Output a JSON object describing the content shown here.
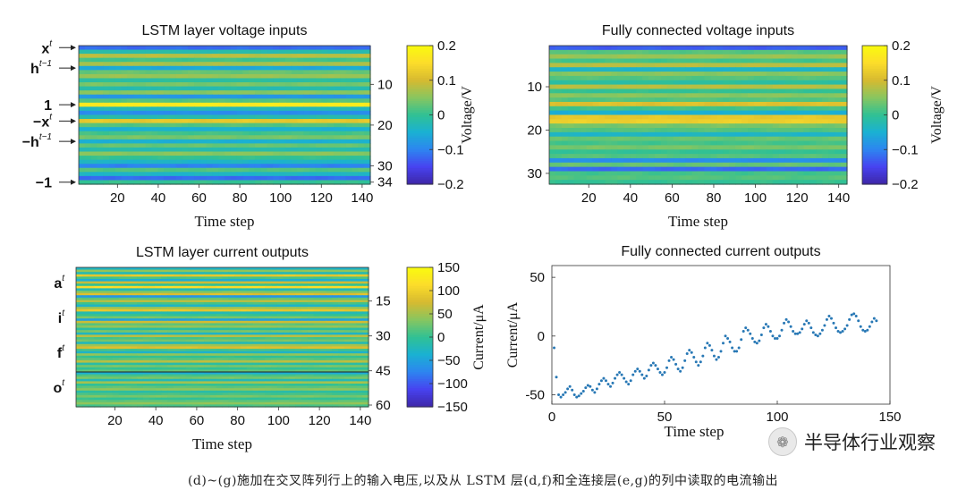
{
  "chart_data": [
    {
      "id": "lstm-voltage",
      "type": "heatmap",
      "title": "LSTM layer voltage inputs",
      "xlabel": "Time step",
      "x_ticks": [
        20,
        40,
        60,
        80,
        100,
        120,
        140
      ],
      "x_range": [
        1,
        144
      ],
      "row_range": [
        1,
        34
      ],
      "y_ticks_right": [
        10,
        20,
        30,
        34
      ],
      "row_labels": [
        {
          "text": "x",
          "sup": "t",
          "row": 1
        },
        {
          "text": "h",
          "sup": "t−1",
          "row": 6
        },
        {
          "text": "1",
          "sup": "",
          "row": 15
        },
        {
          "text": "−x",
          "sup": "t",
          "row": 19
        },
        {
          "text": "−h",
          "sup": "t−1",
          "row": 24
        },
        {
          "text": "−1",
          "sup": "",
          "row": 34
        }
      ],
      "colorbar": {
        "label": "Voltage/V",
        "range": [
          -0.2,
          0.2
        ],
        "ticks": [
          "0.2",
          "0.1",
          "0",
          "−0.1",
          "−0.2"
        ],
        "tick_values": [
          0.2,
          0.1,
          0,
          -0.1,
          -0.2
        ]
      },
      "row_values_V": [
        -0.12,
        -0.02,
        0.08,
        0.01,
        0.07,
        -0.06,
        0.03,
        0.06,
        -0.01,
        0.04,
        -0.02,
        0.05,
        -0.08,
        0.02,
        0.17,
        -0.03,
        -0.09,
        -0.02,
        0.12,
        0.02,
        -0.05,
        0.01,
        0.04,
        -0.05,
        0.03,
        -0.02,
        0.05,
        0.0,
        -0.04,
        -0.1,
        0.02,
        -0.04,
        -0.12,
        0.0
      ]
    },
    {
      "id": "fc-voltage",
      "type": "heatmap",
      "title": "Fully connected voltage inputs",
      "xlabel": "Time step",
      "x_ticks": [
        20,
        40,
        60,
        80,
        100,
        120,
        140
      ],
      "x_range": [
        1,
        144
      ],
      "row_range": [
        1,
        32
      ],
      "y_ticks_left": [
        10,
        20,
        30
      ],
      "colorbar": {
        "label": "Voltage/V",
        "range": [
          -0.2,
          0.2
        ],
        "ticks": [
          "0.2",
          "0.1",
          "0",
          "−0.1",
          "−0.2"
        ],
        "tick_values": [
          0.2,
          0.1,
          0,
          -0.1,
          -0.2
        ]
      },
      "row_values_V": [
        -0.13,
        0.02,
        0.06,
        0.01,
        0.08,
        -0.04,
        0.05,
        0.02,
        -0.01,
        0.08,
        0.0,
        0.05,
        0.02,
        0.11,
        0.01,
        -0.05,
        0.12,
        0.13,
        0.04,
        0.02,
        -0.04,
        0.03,
        0.01,
        0.04,
        0.0,
        0.02,
        -0.09,
        0.03,
        -0.12,
        0.01,
        0.02,
        0.0
      ]
    },
    {
      "id": "lstm-current",
      "type": "heatmap",
      "title": "LSTM layer current outputs",
      "xlabel": "Time step",
      "x_ticks": [
        20,
        40,
        60,
        80,
        100,
        120,
        140
      ],
      "x_range": [
        1,
        144
      ],
      "row_range": [
        1,
        60
      ],
      "y_ticks_right": [
        15,
        30,
        45,
        60
      ],
      "row_labels": [
        {
          "text": "a",
          "sup": "t",
          "row": 7
        },
        {
          "text": "i",
          "sup": "t",
          "row": 22
        },
        {
          "text": "f",
          "sup": "t",
          "row": 37
        },
        {
          "text": "o",
          "sup": "t",
          "row": 52
        }
      ],
      "separator_rows": [
        45
      ],
      "colorbar": {
        "label": "Current/μA",
        "range": [
          -150,
          150
        ],
        "ticks": [
          "150",
          "100",
          "50",
          "0",
          "−50",
          "−100",
          "−150"
        ],
        "tick_values": [
          150,
          100,
          50,
          0,
          -50,
          -100,
          -150
        ]
      },
      "row_values_uA": [
        -30,
        40,
        -20,
        90,
        10,
        -40,
        70,
        0,
        110,
        -20,
        30,
        80,
        -60,
        20,
        60,
        10,
        -30,
        50,
        90,
        -20,
        0,
        30,
        -50,
        70,
        20,
        40,
        -10,
        30,
        -30,
        60,
        10,
        30,
        -20,
        50,
        80,
        10,
        -30,
        40,
        0,
        20,
        60,
        -10,
        30,
        0,
        20,
        -40,
        10,
        30,
        -20,
        50,
        0,
        20,
        40,
        -10,
        10,
        30,
        0,
        20,
        40,
        10
      ]
    },
    {
      "id": "fc-current",
      "type": "scatter",
      "title": "Fully connected current outputs",
      "xlabel": "Time step",
      "ylabel": "Current/μA",
      "xlim": [
        0,
        150
      ],
      "ylim": [
        -58,
        60
      ],
      "x_ticks": [
        0,
        50,
        100,
        150
      ],
      "y_ticks": [
        -50,
        0,
        50
      ],
      "color": "#2878b5",
      "x": [
        1,
        2,
        3,
        4,
        5,
        6,
        7,
        8,
        9,
        10,
        11,
        12,
        13,
        14,
        15,
        16,
        17,
        18,
        19,
        20,
        21,
        22,
        23,
        24,
        25,
        26,
        27,
        28,
        29,
        30,
        31,
        32,
        33,
        34,
        35,
        36,
        37,
        38,
        39,
        40,
        41,
        42,
        43,
        44,
        45,
        46,
        47,
        48,
        49,
        50,
        51,
        52,
        53,
        54,
        55,
        56,
        57,
        58,
        59,
        60,
        61,
        62,
        63,
        64,
        65,
        66,
        67,
        68,
        69,
        70,
        71,
        72,
        73,
        74,
        75,
        76,
        77,
        78,
        79,
        80,
        81,
        82,
        83,
        84,
        85,
        86,
        87,
        88,
        89,
        90,
        91,
        92,
        93,
        94,
        95,
        96,
        97,
        98,
        99,
        100,
        101,
        102,
        103,
        104,
        105,
        106,
        107,
        108,
        109,
        110,
        111,
        112,
        113,
        114,
        115,
        116,
        117,
        118,
        119,
        120,
        121,
        122,
        123,
        124,
        125,
        126,
        127,
        128,
        129,
        130,
        131,
        132,
        133,
        134,
        135,
        136,
        137,
        138,
        139,
        140,
        141,
        142,
        143,
        144
      ],
      "y": [
        -10,
        -35,
        -50,
        -52,
        -50,
        -48,
        -45,
        -43,
        -46,
        -50,
        -52,
        -51,
        -49,
        -47,
        -44,
        -42,
        -43,
        -46,
        -48,
        -45,
        -41,
        -38,
        -36,
        -38,
        -41,
        -43,
        -40,
        -36,
        -33,
        -31,
        -33,
        -36,
        -39,
        -41,
        -38,
        -33,
        -30,
        -28,
        -30,
        -33,
        -36,
        -34,
        -29,
        -25,
        -23,
        -25,
        -28,
        -31,
        -33,
        -31,
        -27,
        -21,
        -18,
        -20,
        -24,
        -28,
        -30,
        -27,
        -21,
        -15,
        -12,
        -14,
        -18,
        -22,
        -25,
        -22,
        -17,
        -10,
        -6,
        -8,
        -12,
        -17,
        -20,
        -18,
        -13,
        -6,
        0,
        -2,
        -5,
        -10,
        -13,
        -13,
        -10,
        -3,
        4,
        7,
        5,
        2,
        -2,
        -5,
        -6,
        -4,
        1,
        7,
        10,
        8,
        4,
        0,
        -2,
        -2,
        0,
        5,
        11,
        14,
        12,
        8,
        4,
        2,
        2,
        3,
        6,
        10,
        13,
        11,
        7,
        3,
        1,
        0,
        2,
        5,
        9,
        14,
        17,
        15,
        11,
        7,
        4,
        3,
        4,
        6,
        9,
        14,
        18,
        19,
        17,
        13,
        8,
        5,
        4,
        5,
        8,
        12,
        15,
        13
      ]
    }
  ],
  "watermark": {
    "logo_glyph": "❁",
    "text": "半导体行业观察"
  },
  "caption": "(d)~(g)施加在交叉阵列行上的输入电压,以及从 LSTM 层(d,f)和全连接层(e,g)的列中读取的电流输出",
  "colors": {
    "colormap": [
      "#3e26a8",
      "#4743f0",
      "#2d85f0",
      "#1ab1d2",
      "#31c193",
      "#89c65f",
      "#d7ba30",
      "#fcdd2a",
      "#f9fb0e"
    ],
    "scatter": "#2878b5"
  }
}
